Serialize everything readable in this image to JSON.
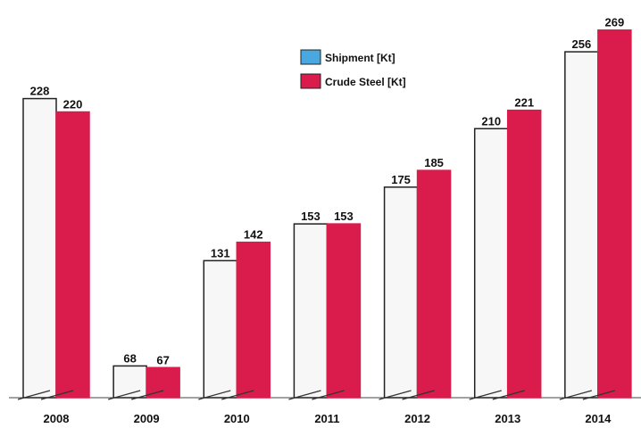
{
  "chart_data": {
    "type": "bar",
    "categories": [
      "2008",
      "2009",
      "2010",
      "2011",
      "2012",
      "2013",
      "2014"
    ],
    "series": [
      {
        "name": "Shipment [Kt]",
        "color": "#f7f7f7",
        "legend_color": "#4aa8e0",
        "values": [
          228,
          68,
          131,
          153,
          175,
          210,
          256
        ]
      },
      {
        "name": "Crude Steel [Kt]",
        "color": "#d91c4c",
        "values": [
          220,
          67,
          142,
          153,
          185,
          221,
          269
        ]
      }
    ],
    "ylim": [
      49,
      287
    ]
  }
}
